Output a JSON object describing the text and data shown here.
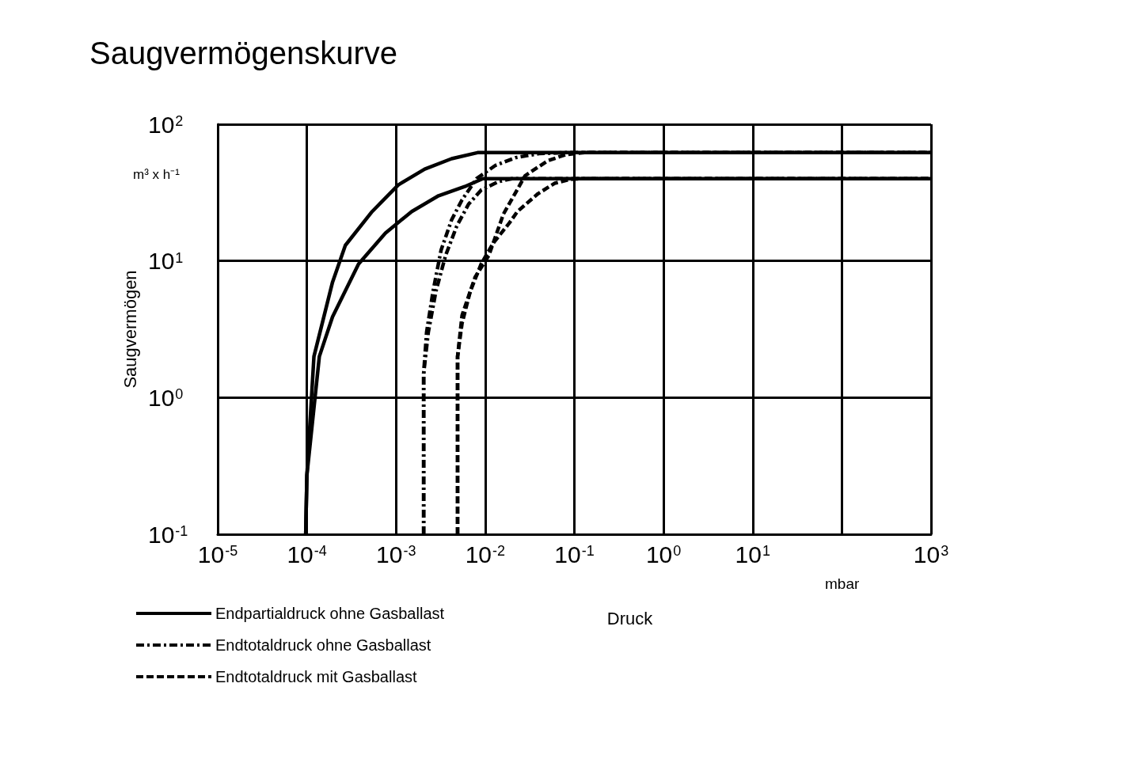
{
  "chart_data": {
    "type": "line",
    "title": "Saugvermögenskurve",
    "xlabel": "Druck",
    "ylabel": "Saugvermögen",
    "annotations": [
      "m³ x h⁻¹",
      "mbar"
    ],
    "log": "xy",
    "grid": true,
    "legend": "bottom left",
    "marker": "none",
    "xlim": [
      1e-05,
      1000
    ],
    "ylim": [
      0.1,
      100
    ],
    "xticks": [
      {
        "value": 1e-05,
        "label": "10$^{-5}$"
      },
      {
        "value": 0.0001,
        "label": "10$^{-4}$"
      },
      {
        "value": 0.001,
        "label": "10$^{-3}$"
      },
      {
        "value": 0.01,
        "label": "10$^{-2}$"
      },
      {
        "value": 0.1,
        "label": "10$^{-1}$"
      },
      {
        "value": 1,
        "label": "10$^{0}$"
      },
      {
        "value": 10,
        "label": "10$^{1}$"
      },
      {
        "value": 100,
        "label": null
      },
      {
        "value": 1000,
        "label": "10$^{3}$"
      }
    ],
    "yticks": [
      {
        "value": 0.1,
        "label": "10$^{-1}$"
      },
      {
        "value": 1,
        "label": "10$^{0}$"
      },
      {
        "value": 10,
        "label": "10$^{1}$"
      },
      {
        "value": 100,
        "label": "10$^{2}$"
      }
    ],
    "series": [
      {
        "name": "Endpartialdruck ohne Gasballast",
        "color": "#000000",
        "line_style": "solid",
        "x": [
          9.7e-05,
          0.0001,
          0.00012,
          0.000194,
          0.00027,
          0.00054,
          0.00106,
          0.0021,
          0.0042,
          0.0082,
          1000
        ],
        "values": [
          0.1,
          0.27,
          2.0,
          7.0,
          13,
          23,
          36,
          47,
          56,
          62,
          62
        ]
      },
      {
        "name": "Endtotaldruck ohne Gasballast",
        "color": "#000000",
        "line_style": "dashdot",
        "x": [
          0.00204,
          0.00204,
          0.0022,
          0.0026,
          0.0032,
          0.0042,
          0.0055,
          0.008,
          0.013,
          0.022,
          0.04,
          0.08,
          1000
        ],
        "values": [
          0.1,
          1.5,
          3,
          6,
          12,
          20,
          28,
          40,
          50,
          57,
          61,
          62,
          62
        ]
      },
      {
        "name": "Endtotaldruck mit Gasballast",
        "color": "#000000",
        "line_style": "dashed",
        "x": [
          0.0049,
          0.0049,
          0.0055,
          0.0077,
          0.011,
          0.016,
          0.028,
          0.05,
          0.08,
          0.13,
          1000
        ],
        "values": [
          0.1,
          2,
          4,
          7.6,
          11,
          22,
          42,
          54,
          60,
          62,
          62
        ]
      },
      {
        "color": "#000000",
        "line_style": "solid",
        "x": [
          9.7e-05,
          0.0001,
          0.000138,
          0.000194,
          0.00038,
          0.00076,
          0.0015,
          0.003,
          0.0059,
          0.0094,
          1000
        ],
        "values": [
          0.1,
          0.27,
          2.0,
          3.9,
          9.5,
          16,
          23,
          30,
          35,
          40,
          40
        ]
      },
      {
        "color": "#000000",
        "line_style": "dashdot",
        "x": [
          0.00204,
          0.00204,
          0.0023,
          0.0028,
          0.0036,
          0.0048,
          0.0065,
          0.009,
          0.014,
          0.02,
          1000
        ],
        "values": [
          0.1,
          1.5,
          3,
          6,
          11,
          18,
          26,
          33,
          38,
          40,
          40
        ]
      },
      {
        "color": "#000000",
        "line_style": "dashed",
        "x": [
          0.0049,
          0.0049,
          0.0055,
          0.0068,
          0.009,
          0.0123,
          0.0186,
          0.023,
          0.039,
          0.06,
          0.09,
          0.12,
          1000
        ],
        "values": [
          0.1,
          2,
          3.5,
          6,
          9.5,
          13.5,
          18.9,
          23,
          31,
          37,
          39.5,
          40,
          40
        ]
      }
    ]
  }
}
